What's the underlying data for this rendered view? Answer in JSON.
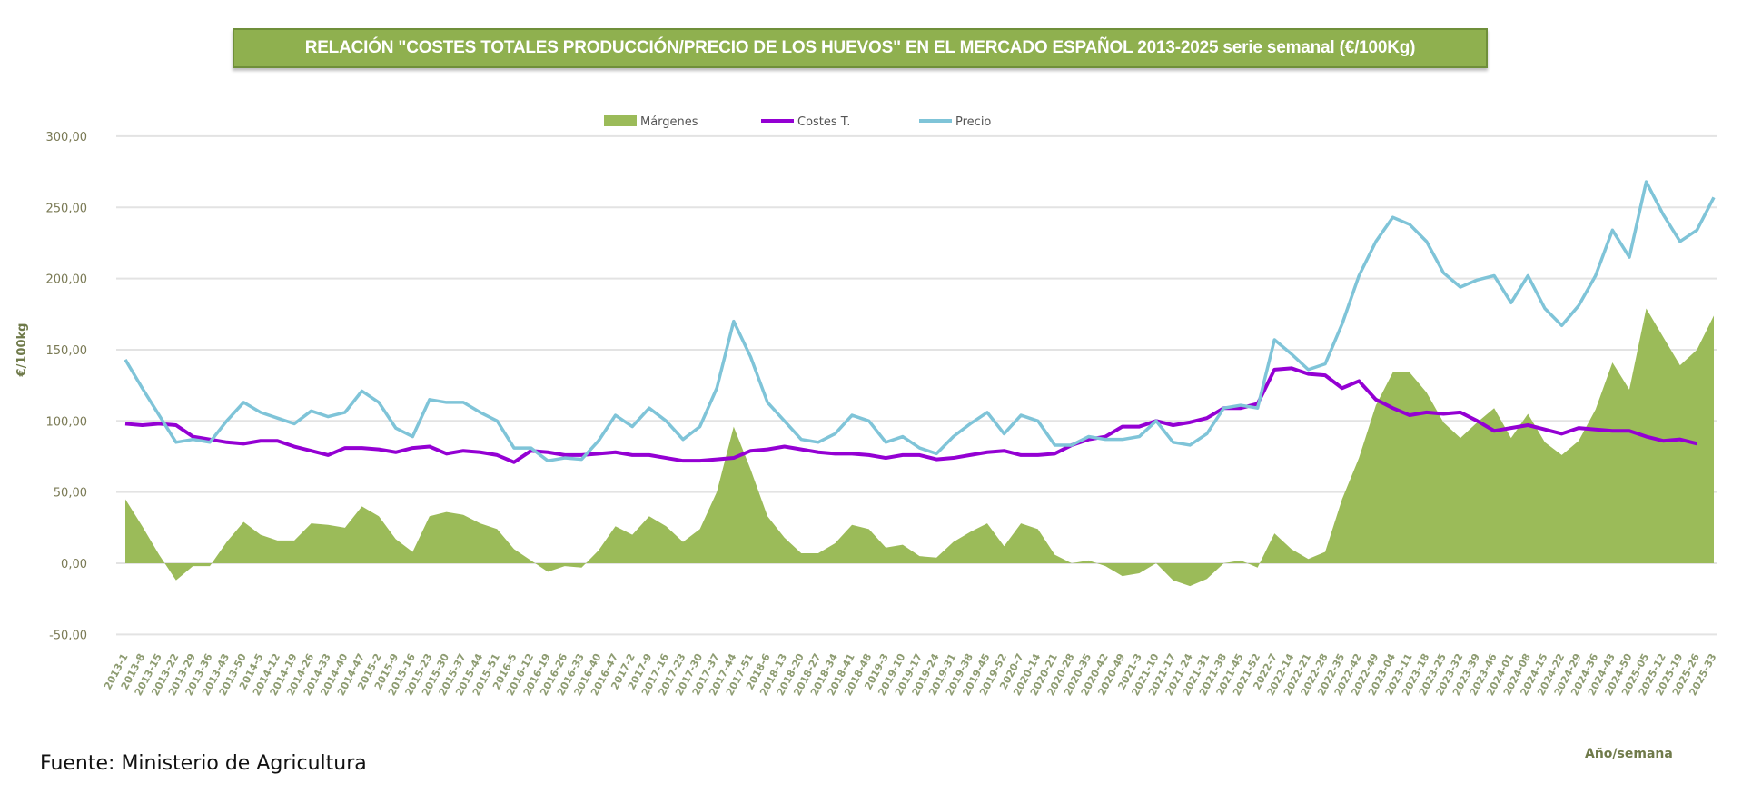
{
  "source": "Fuente: Ministerio de Agricultura",
  "chart_data": {
    "type": "line",
    "title": "RELACIÓN \"COSTES TOTALES PRODUCCIÓN/PRECIO DE LOS HUEVOS\" EN EL MERCADO ESPAÑOL 2013-2025 serie semanal (€/100Kg)",
    "xlabel": "Año/semana",
    "ylabel": "€/100kg",
    "ylim": [
      -50,
      300
    ],
    "yticks": [
      -50,
      0,
      50,
      100,
      150,
      200,
      250,
      300
    ],
    "ytick_labels": [
      "-50,00",
      "0,00",
      "50,00",
      "100,00",
      "150,00",
      "200,00",
      "250,00",
      "300,00"
    ],
    "grid": true,
    "legend_position": "top",
    "categories": [
      "2013-1",
      "2013-8",
      "2013-15",
      "2013-22",
      "2013-29",
      "2013-36",
      "2013-43",
      "2013-50",
      "2014-5",
      "2014-12",
      "2014-19",
      "2014-26",
      "2014-33",
      "2014-40",
      "2014-47",
      "2015-2",
      "2015-9",
      "2015-16",
      "2015-23",
      "2015-30",
      "2015-37",
      "2015-44",
      "2015-51",
      "2016-5",
      "2016-12",
      "2016-19",
      "2016-26",
      "2016-33",
      "2016-40",
      "2016-47",
      "2017-2",
      "2017-9",
      "2017-16",
      "2017-23",
      "2017-30",
      "2017-37",
      "2017-44",
      "2017-51",
      "2018-6",
      "2018-13",
      "2018-20",
      "2018-27",
      "2018-34",
      "2018-41",
      "2018-48",
      "2019-3",
      "2019-10",
      "2019-17",
      "2019-24",
      "2019-31",
      "2019-38",
      "2019-45",
      "2019-52",
      "2020-7",
      "2020-14",
      "2020-21",
      "2020-28",
      "2020-35",
      "2020-42",
      "2020-49",
      "2021-3",
      "2021-10",
      "2021-17",
      "2021-24",
      "2021-31",
      "2021-38",
      "2021-45",
      "2021-52",
      "2022-7",
      "2022-14",
      "2022-21",
      "2022-28",
      "2022-35",
      "2022-42",
      "2022-49",
      "2023-04",
      "2023-11",
      "2023-18",
      "2023-25",
      "2023-32",
      "2023-39",
      "2023-46",
      "2024-01",
      "2024-08",
      "2024-15",
      "2024-22",
      "2024-29",
      "2024-36",
      "2024-43",
      "2024-50",
      "2025-05",
      "2025-12",
      "2025-19",
      "2025-26",
      "2025-33"
    ],
    "series": [
      {
        "name": "Márgenes",
        "type": "area",
        "color": "#9bbb59",
        "values": [
          45,
          26,
          6,
          -12,
          -2,
          -2,
          15,
          29,
          20,
          16,
          16,
          28,
          27,
          25,
          40,
          33,
          17,
          8,
          33,
          36,
          34,
          28,
          24,
          10,
          2,
          -6,
          -2,
          -3,
          9,
          26,
          20,
          33,
          26,
          15,
          24,
          50,
          96,
          66,
          33,
          18,
          7,
          7,
          14,
          27,
          24,
          11,
          13,
          5,
          4,
          15,
          22,
          28,
          12,
          28,
          24,
          6,
          0,
          2,
          -2,
          -9,
          -7,
          0,
          -12,
          -16,
          -11,
          0,
          2,
          -3,
          21,
          10,
          3,
          8,
          45,
          74,
          111,
          134,
          134,
          120,
          99,
          88,
          99,
          109,
          88,
          105,
          85,
          76,
          86,
          108,
          141,
          122,
          179,
          159,
          139,
          150,
          174
        ]
      },
      {
        "name": "Costes T.",
        "type": "line",
        "color": "#9400d3",
        "values": [
          98,
          97,
          98,
          97,
          89,
          87,
          85,
          84,
          86,
          86,
          82,
          79,
          76,
          81,
          81,
          80,
          78,
          81,
          82,
          77,
          79,
          78,
          76,
          71,
          79,
          78,
          76,
          76,
          77,
          78,
          76,
          76,
          74,
          72,
          72,
          73,
          74,
          79,
          80,
          82,
          80,
          78,
          77,
          77,
          76,
          74,
          76,
          76,
          73,
          74,
          76,
          78,
          79,
          76,
          76,
          77,
          83,
          87,
          89,
          96,
          96,
          100,
          97,
          99,
          102,
          109,
          109,
          112,
          136,
          137,
          133,
          132,
          123,
          128,
          115,
          109,
          104,
          106,
          105,
          106,
          100,
          93,
          95,
          97,
          94,
          91,
          95,
          94,
          93,
          93,
          89,
          86,
          87,
          84,
          null
        ]
      },
      {
        "name": "Precio",
        "type": "line",
        "color": "#7fc4d8",
        "values": [
          143,
          123,
          104,
          85,
          87,
          85,
          100,
          113,
          106,
          102,
          98,
          107,
          103,
          106,
          121,
          113,
          95,
          89,
          115,
          113,
          113,
          106,
          100,
          81,
          81,
          72,
          74,
          73,
          86,
          104,
          96,
          109,
          100,
          87,
          96,
          123,
          170,
          145,
          113,
          100,
          87,
          85,
          91,
          104,
          100,
          85,
          89,
          81,
          77,
          89,
          98,
          106,
          91,
          104,
          100,
          83,
          83,
          89,
          87,
          87,
          89,
          100,
          85,
          83,
          91,
          109,
          111,
          109,
          157,
          147,
          136,
          140,
          168,
          202,
          226,
          243,
          238,
          226,
          204,
          194,
          199,
          202,
          183,
          202,
          179,
          167,
          181,
          202,
          234,
          215,
          268,
          245,
          226,
          234,
          257
        ]
      }
    ]
  }
}
